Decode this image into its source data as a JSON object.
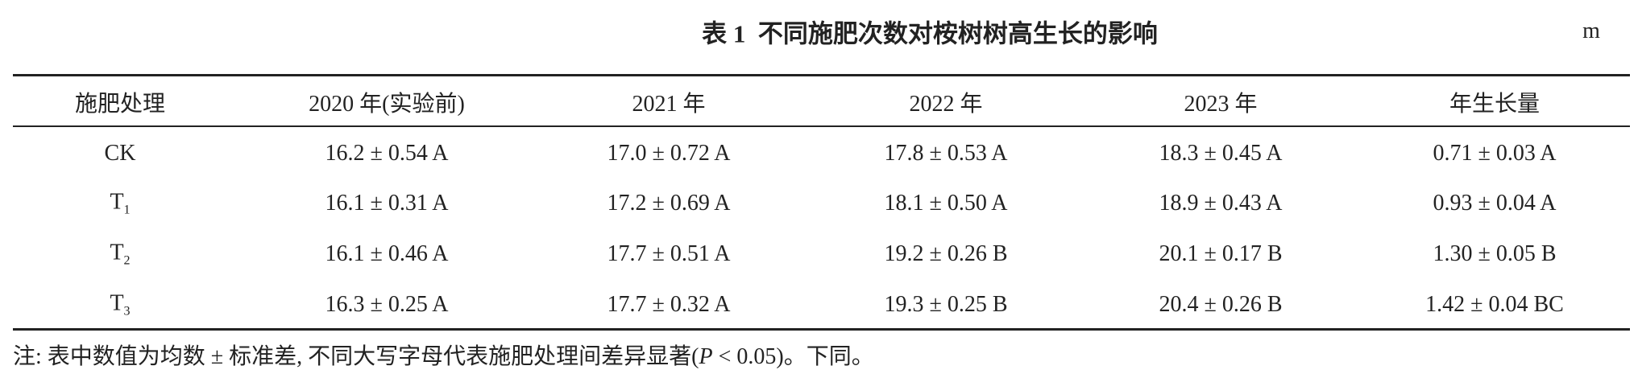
{
  "title": {
    "label": "表 1",
    "text": "不同施肥次数对桉树树高生长的影响",
    "unit": "m"
  },
  "table": {
    "header": [
      "施肥处理",
      "2020 年(实验前)",
      "2021 年",
      "2022 年",
      "2023 年",
      "年生长量"
    ],
    "rows": [
      [
        {
          "text": "CK"
        },
        "16.2 ± 0.54 A",
        "17.0 ± 0.72 A",
        "17.8 ± 0.53 A",
        "18.3 ± 0.45 A",
        "0.71 ± 0.03 A"
      ],
      [
        {
          "text": "T",
          "sub": "1"
        },
        "16.1 ± 0.31 A",
        "17.2 ± 0.69 A",
        "18.1 ± 0.50 A",
        "18.9 ± 0.43 A",
        "0.93 ± 0.04 A"
      ],
      [
        {
          "text": "T",
          "sub": "2"
        },
        "16.1 ± 0.46 A",
        "17.7 ± 0.51 A",
        "19.2 ± 0.26 B",
        "20.1 ± 0.17 B",
        "1.30 ± 0.05 B"
      ],
      [
        {
          "text": "T",
          "sub": "3"
        },
        "16.3 ± 0.25 A",
        "17.7 ± 0.32 A",
        "19.3 ± 0.25 B",
        "20.4 ± 0.26 B",
        "1.42 ± 0.04 BC"
      ]
    ]
  },
  "note": {
    "prefix": "注: 表中数值为均数 ± 标准差, 不同大写字母代表施肥处理间差异显著(",
    "italic": "P",
    "suffix": " < 0.05)。下同。"
  }
}
